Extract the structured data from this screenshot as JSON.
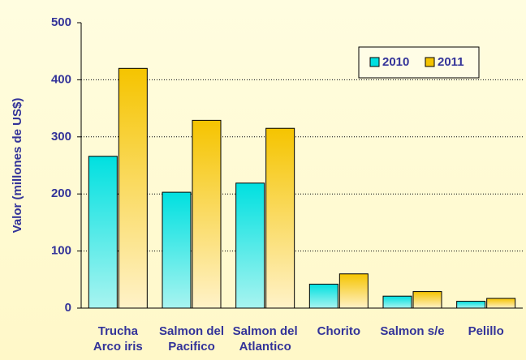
{
  "chart_data": {
    "type": "bar",
    "y_label": "Valor (millones de US$)",
    "categories": [
      [
        "Trucha",
        "Arco iris"
      ],
      [
        "Salmon del",
        "Pacifico"
      ],
      [
        "Salmon del",
        "Atlantico"
      ],
      [
        "Chorito"
      ],
      [
        "Salmon s/e"
      ],
      [
        "Pelillo"
      ]
    ],
    "series": [
      {
        "name": "2010",
        "color": "#00e0e0",
        "values": [
          266,
          203,
          219,
          42,
          21,
          12
        ]
      },
      {
        "name": "2011",
        "color": "#f5c400",
        "values": [
          420,
          329,
          315,
          60,
          29,
          17
        ]
      }
    ],
    "ylim": [
      0,
      500
    ],
    "yticks": [
      0,
      100,
      200,
      300,
      400,
      500
    ],
    "grid": true,
    "legend": "top-right"
  }
}
